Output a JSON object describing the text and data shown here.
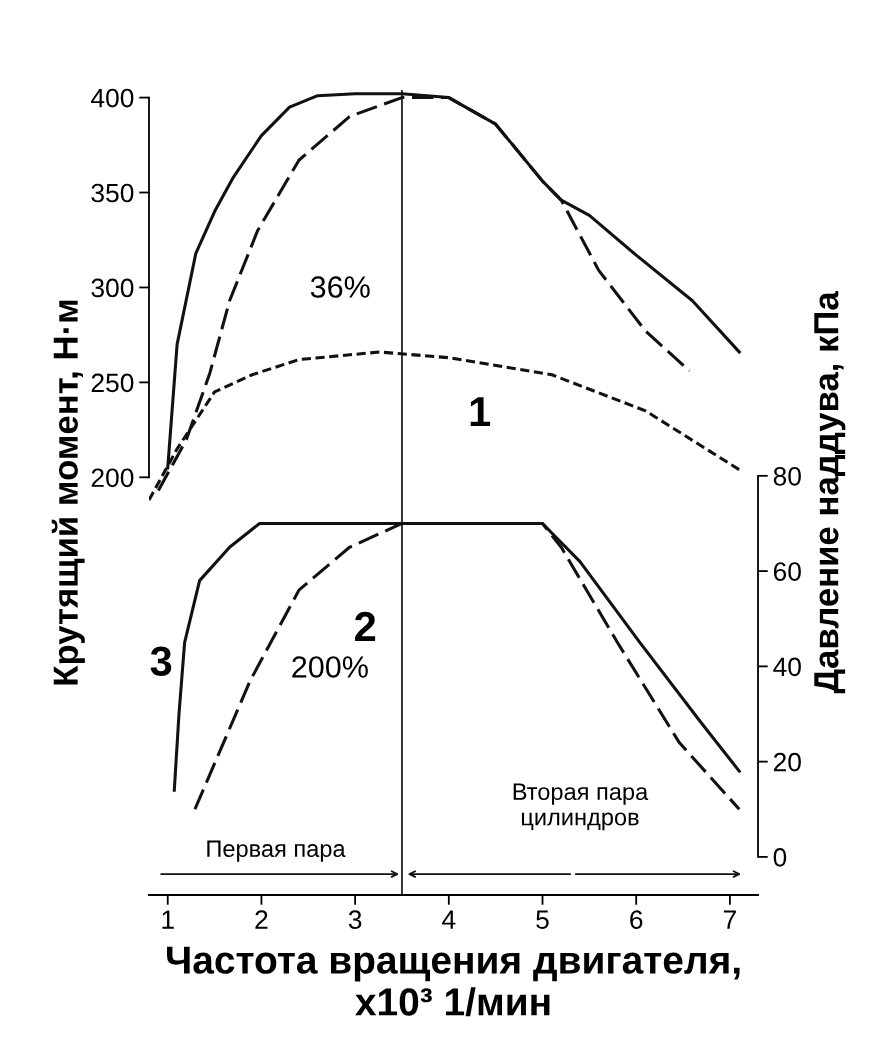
{
  "chart_data": {
    "type": "line",
    "xlabel": "Частота вращения двигателя,\nx10³ 1/мин",
    "ylabel": "Крутящий момент, Н·м",
    "y2label": "Давление наддува, кПа",
    "xlim": [
      0.8,
      7.3
    ],
    "xticks": [
      1,
      2,
      3,
      4,
      5,
      6,
      7
    ],
    "ylim": [
      -20,
      404
    ],
    "yticks": [
      200,
      250,
      300,
      350,
      400
    ],
    "y2lim": [
      -8,
      161
    ],
    "y2ticks": [
      0,
      20,
      40,
      60,
      80
    ],
    "grid": false,
    "marker": "none",
    "series": [
      {
        "color": "#111111",
        "line_style": "solid",
        "x": [
          1.0,
          1.1,
          1.3,
          1.5,
          1.7,
          2.0,
          2.3,
          2.6,
          3.0,
          3.5,
          4.0,
          4.5,
          5.0,
          5.2,
          5.5,
          6.0,
          6.6,
          7.1
        ],
        "values": [
          205,
          270,
          318,
          340,
          358,
          380,
          395,
          401,
          402,
          402,
          400,
          386,
          356,
          346,
          338,
          317,
          293,
          266
        ]
      },
      {
        "color": "#111111",
        "line_style": "dashed",
        "x": [
          0.9,
          1.2,
          1.45,
          1.66,
          1.96,
          2.4,
          2.94,
          3.5,
          4.0,
          4.5,
          5.0,
          5.2,
          5.6,
          6.1,
          6.57
        ],
        "values": [
          193,
          220,
          255,
          293,
          330,
          367,
          390,
          400,
          400,
          386,
          356,
          346,
          309,
          277,
          256
        ]
      },
      {
        "color": "#111111",
        "line_style": "dotted",
        "x": [
          0.8,
          1.1,
          1.5,
          1.9,
          2.4,
          3.26,
          4.0,
          5.1,
          6.1,
          7.1
        ],
        "values": [
          188,
          215,
          245,
          254,
          262,
          266,
          263,
          254,
          235,
          204
        ]
      },
      {
        "color": "#111111",
        "line_style": "solid",
        "axis": "y2",
        "x": [
          1.07,
          1.12,
          1.18,
          1.34,
          1.66,
          1.98,
          3.5,
          5.0,
          5.4,
          6.04,
          6.7,
          7.1
        ],
        "values": [
          14,
          30,
          45,
          58,
          65,
          70,
          70,
          70,
          62,
          45,
          28,
          18
        ]
      },
      {
        "color": "#111111",
        "line_style": "dashed",
        "axis": "y2",
        "x": [
          1.29,
          1.88,
          2.4,
          2.94,
          3.5,
          5.0,
          5.2,
          5.8,
          6.46,
          7.1
        ],
        "values": [
          10,
          37,
          56,
          65,
          70,
          70,
          65,
          45,
          24,
          10
        ]
      }
    ],
    "ref_lines": [
      {
        "axis": "x",
        "value": 3.5,
        "color": "#111111"
      }
    ],
    "annotations": [
      "1",
      "2",
      "3",
      "36%",
      "200%",
      "Первая пара",
      "Вторая пара\nцилиндров"
    ]
  }
}
